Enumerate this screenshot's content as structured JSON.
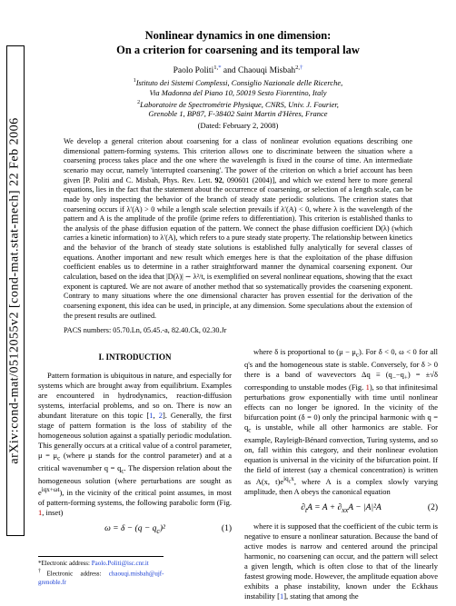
{
  "arxiv": "arXiv:cond-mat/0512055v2  [cond-mat.stat-mech]  22 Feb 2006",
  "title_line1": "Nonlinear dynamics in one dimension:",
  "title_line2": "On a criterion for coarsening and its temporal law",
  "authors_html": "Paolo Politi<span class='sup'>1,<span class='link'>*</span></span> and Chaouqi Misbah<span class='sup'>2,<span class='link'>†</span></span>",
  "affil1": "<span class='sup' style='font-style:normal'>1</span>Istituto dei Sistemi Complessi, Consiglio Nazionale delle Ricerche,<br>Via Madonna del Piano 10, 50019 Sesto Fiorentino, Italy",
  "affil2": "<span class='sup' style='font-style:normal'>2</span>Laboratoire de Spectrométrie Physique, CNRS, Univ. J. Fourier,<br>Grenoble 1, BP87, F-38402 Saint Martin d'Hères, France",
  "dated": "(Dated: February 2, 2008)",
  "abstract": "We develop a general criterion about coarsening for a class of nonlinear evolution equations describing one dimensional pattern-forming systems. This criterion allows one to discriminate between the situation where a coarsening process takes place and the one where the wavelength is fixed in the course of time. An intermediate scenario may occur, namely 'interrupted coarsening'. The power of the criterion on which a brief account has been given [P. Politi and C. Misbah, Phys. Rev. Lett. <b>92</b>, 090601 (2004)], and which we extend here to more general equations, lies in the fact that the statement about the occurrence of coarsening, or selection of a length scale, can be made by only inspecting the behavior of the branch of steady state periodic solutions. The criterion states that coarsening occurs if λ′(A) > 0 while a length scale selection prevails if λ′(A) < 0, where λ is the wavelength of the pattern and A is the amplitude of the profile (prime refers to differentiation). This criterion is established thanks to the analysis of the phase diffusion equation of the pattern. We connect the phase diffusion coefficient D(λ) (which carries a kinetic information) to λ′(A), which refers to a pure steady state property. The relationship between kinetics and the behavior of the branch of steady state solutions is established fully analytically for several classes of equations. Another important and new result which emerges here is that the exploitation of the phase diffusion coefficient enables us to determine in a rather straightforward manner the dynamical coarsening exponent. Our calculation, based on the idea that |D(λ)| ∼ λ²/t, is exemplified on several nonlinear equations, showing that the exact exponent is captured. We are not aware of another method that so systematically provides the coarsening exponent. Contrary to many situations where the one dimensional character has proven essential for the derivation of the coarsening exponent, this idea can be used, in principle, at any dimension. Some speculations about the extension of the present results are outlined.",
  "pacs": "PACS numbers: 05.70.Ln, 05.45.-a, 82.40.Ck, 02.30.Jr",
  "sec1": "I.   INTRODUCTION",
  "left_p1": "Pattern formation is ubiquitous in nature, and especially for systems which are brought away from equilibrium. Examples are encountered in hydrodynamics, reaction-diffusion systems, interfacial problems, and so on. There is now an abundant literature on this topic [<span class='link'>1</span>, <span class='link'>2</span>]. Generally, the first stage of pattern formation is the loss of stability of the homogeneous solution against a spatially periodic modulation. This generally occurs at a critical value of a control parameter, μ = μ<sub>c</sub> (where μ stands for the control parameter) and at a critical wavenumber q = q<sub>c</sub>. The dispersion relation about the homogeneous solution (where perturbations are sought as e<sup>iqx+ωt</sup>), in the vicinity of the critical point assumes, in most of pattern-forming systems, the following parabolic form (Fig. <span class='red'>1</span>, inset)",
  "eq1": "ω = δ − (q − q<sub>c</sub>)²",
  "eq1_num": "(1)",
  "right_p1": "where δ is proportional to (μ − μ<sub>c</sub>). For δ < 0, ω < 0 for all q's and the homogeneous state is stable. Conversely, for δ > 0 there is a band of wavevectors Δq ≡ (q<sub>−</sub>−q<sub>+</sub>) = ±√δ corresponding to unstable modes (Fig. <span class='red'>1</span>), so that infinitesimal perturbations grow exponentially with time until nonlinear effects can no longer be ignored. In the vicinity of the bifurcation point (δ = 0) only the principal harmonic with q = q<sub>c</sub> is unstable, while all other harmonics are stable. For example, Rayleigh-Bénard convection, Turing systems, and so on, fall within this category, and their nonlinear evolution equation is universal in the vicinity of the bifurcation point. If the field of interest (say a chemical concentration) is written as A(x, t)e<sup>iq<sub>c</sub>x</sup>, where A is a complex slowly varying amplitude, then A obeys the canonical equation",
  "eq2": "∂<sub>t</sub>A = A + ∂<sub>xx</sub>A − |A|²A",
  "eq2_num": "(2)",
  "right_p2": "where it is supposed that the coefficient of the cubic term is negative to ensure a nonlinear saturation. Because the band of active modes is narrow and centered around the principal harmonic, no coarsening can occur, and the pattern will select a given length, which is often close to that of the linearly fastest growing mode. However, the amplitude equation above exhibits a phase instability, known under the Eckhaus instability [<span class='link'>1</span>], stating that among the",
  "fn1": "*Electronic address: <span class='link'>Paolo.Politi@isc.cnr.it</span>",
  "fn2": "<sup>†</sup>Electronic address: <span class='link'>chaouqi.misbah@ujf-grenoble.fr</span>"
}
